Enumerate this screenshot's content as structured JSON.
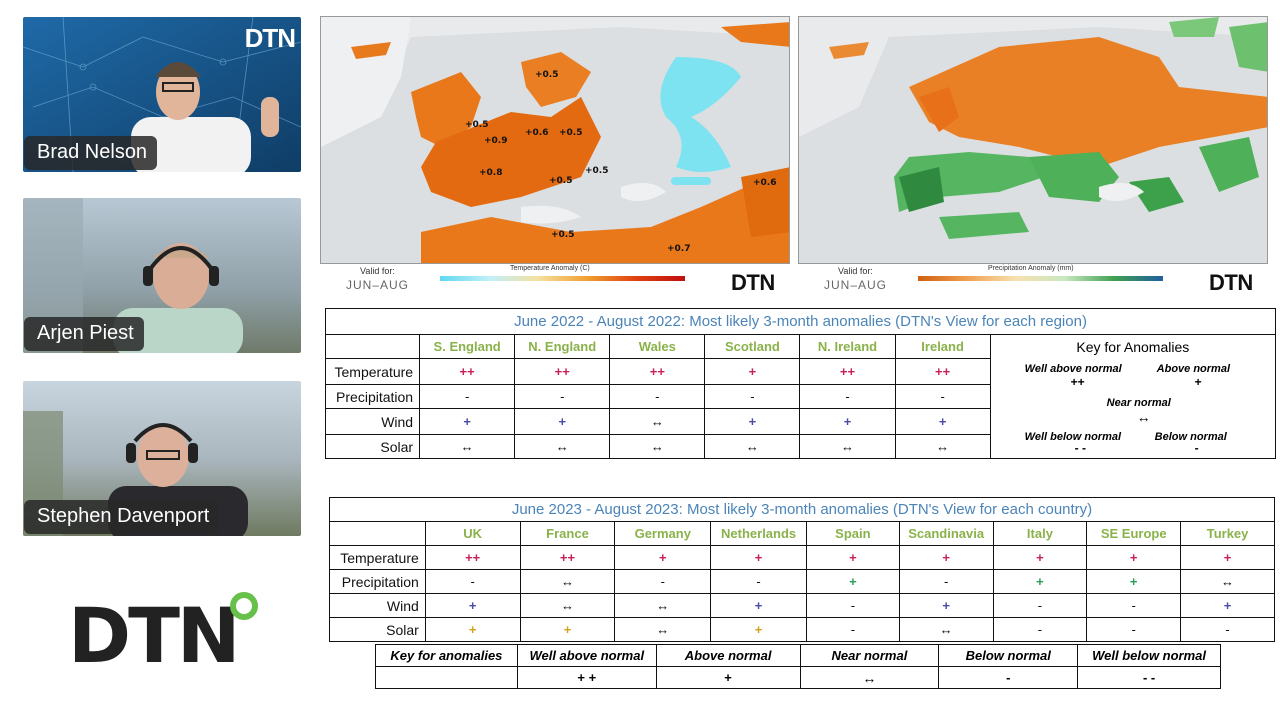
{
  "participants": [
    {
      "name": "Brad Nelson",
      "bg": "#1f5a8c"
    },
    {
      "name": "Arjen Piest",
      "bg": "#8fa7b8"
    },
    {
      "name": "Stephen Davenport",
      "bg": "#a9b8c4"
    }
  ],
  "brand": {
    "logo_text": "DTN",
    "tile_logo_text": "DTN",
    "accent": "#66c04a"
  },
  "slide": {
    "map_left": {
      "valid_for": "Valid for:",
      "period": "JUN–AUG",
      "legend_title": "Temperature Anomaly (C)",
      "logo": "DTN",
      "labels": [
        "+0.5",
        "+0.5",
        "+0.9",
        "+0.6",
        "+0.5",
        "+0.8",
        "+0.5",
        "+0.5",
        "+0.6",
        "+0.5",
        "+0.7"
      ]
    },
    "map_right": {
      "valid_for": "Valid for:",
      "period": "JUN–AUG",
      "legend_title": "Precipitation Anomaly (mm)",
      "logo": "DTN"
    },
    "table_2022": {
      "title": "June 2022 - August 2022: Most likely 3-month anomalies (DTN's View for each region)",
      "columns": [
        "S. England",
        "N. England",
        "Wales",
        "Scotland",
        "N. Ireland",
        "Ireland"
      ],
      "rows": [
        {
          "label": "Temperature",
          "cells": [
            "++",
            "++",
            "++",
            "+",
            "++",
            "++"
          ]
        },
        {
          "label": "Precipitation",
          "cells": [
            "-",
            "-",
            "-",
            "-",
            "-",
            "-"
          ]
        },
        {
          "label": "Wind",
          "cells": [
            "+",
            "+",
            "↔",
            "+",
            "+",
            "+"
          ]
        },
        {
          "label": "Solar",
          "cells": [
            "↔",
            "↔",
            "↔",
            "↔",
            "↔",
            "↔"
          ]
        }
      ],
      "key": {
        "title": "Key for Anomalies",
        "well_above": "Well above normal",
        "well_above_sym": "++",
        "above": "Above normal",
        "above_sym": "+",
        "near": "Near normal",
        "near_sym": "↔",
        "well_below": "Well below normal",
        "well_below_sym": "- -",
        "below": "Below normal",
        "below_sym": "-"
      }
    },
    "table_2023": {
      "title": "June 2023 - August 2023: Most likely 3-month anomalies (DTN's View for each country)",
      "columns": [
        "UK",
        "France",
        "Germany",
        "Netherlands",
        "Spain",
        "Scandinavia",
        "Italy",
        "SE Europe",
        "Turkey"
      ],
      "rows": [
        {
          "label": "Temperature",
          "cells": [
            "++",
            "++",
            "+",
            "+",
            "+",
            "+",
            "+",
            "+",
            "+"
          ]
        },
        {
          "label": "Precipitation",
          "cells": [
            "-",
            "↔",
            "-",
            "-",
            "+",
            "-",
            "+",
            "+",
            "↔"
          ]
        },
        {
          "label": "Wind",
          "cells": [
            "+",
            "↔",
            "↔",
            "+",
            "-",
            "+",
            "-",
            "-",
            "+"
          ]
        },
        {
          "label": "Solar",
          "cells": [
            "+",
            "+",
            "↔",
            "+",
            "-",
            "↔",
            "-",
            "-",
            "-"
          ]
        }
      ],
      "key": {
        "label": "Key for anomalies",
        "headers": [
          "Well above normal",
          "Above normal",
          "Near normal",
          "Below normal",
          "Well below normal"
        ],
        "symbols": [
          "+ +",
          "+",
          "↔",
          "-",
          "- -"
        ]
      }
    }
  }
}
